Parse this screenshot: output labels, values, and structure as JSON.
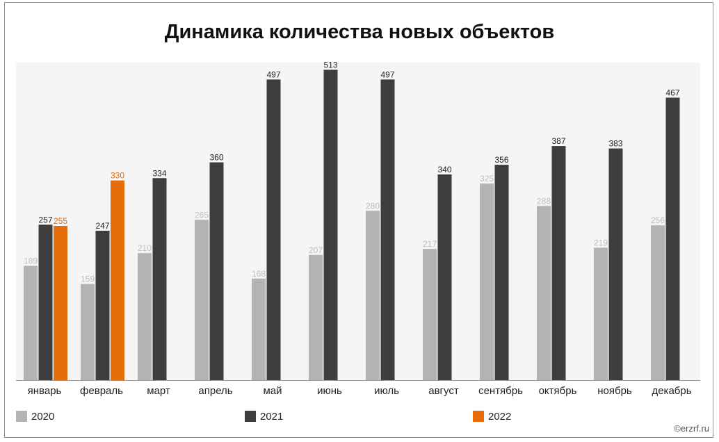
{
  "chart_data": {
    "type": "bar",
    "title": "Динамика количества новых объектов",
    "categories": [
      "январь",
      "февраль",
      "март",
      "апрель",
      "май",
      "июнь",
      "июль",
      "август",
      "сентябрь",
      "октябрь",
      "ноябрь",
      "декабрь"
    ],
    "series": [
      {
        "name": "2020",
        "color": "#b3b3b3",
        "label_color": "#bdbdbd",
        "values": [
          189,
          159,
          210,
          265,
          168,
          207,
          280,
          217,
          325,
          288,
          219,
          256
        ]
      },
      {
        "name": "2021",
        "color": "#3d3d3d",
        "label_color": "#222222",
        "values": [
          257,
          247,
          334,
          360,
          497,
          513,
          497,
          340,
          356,
          387,
          383,
          467
        ]
      },
      {
        "name": "2022",
        "color": "#e46c0a",
        "label_color": "#e46c0a",
        "values": [
          255,
          330,
          null,
          null,
          null,
          null,
          null,
          null,
          null,
          null,
          null,
          null
        ]
      }
    ],
    "ylim": [
      0,
      525
    ],
    "xlabel": "",
    "ylabel": "",
    "grid": false,
    "legend": "bottom"
  },
  "watermark": "©erzrf.ru"
}
